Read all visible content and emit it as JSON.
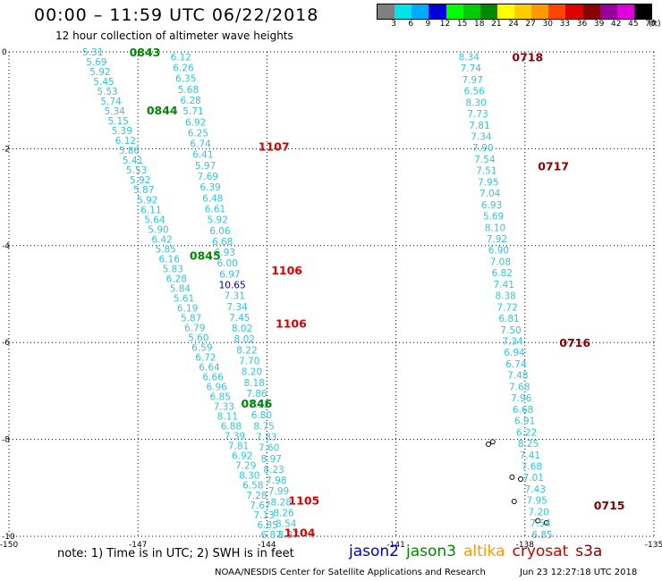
{
  "header": {
    "title": "00:00 – 11:59 UTC 06/22/2018",
    "subtitle": "12 hour collection of altimeter wave heights"
  },
  "scale": {
    "unit": "(ft)",
    "labels": [
      "3",
      "6",
      "9",
      "12",
      "15",
      "18",
      "21",
      "24",
      "27",
      "30",
      "33",
      "36",
      "39",
      "42",
      "45",
      "70"
    ],
    "colors": [
      "#808080",
      "#00e6e6",
      "#00aaff",
      "#0000dd",
      "#00ff00",
      "#00cc00",
      "#008800",
      "#ffff00",
      "#ffcc00",
      "#ff9900",
      "#ff4400",
      "#dd0000",
      "#880000",
      "#990099",
      "#dd00dd",
      "#000000"
    ]
  },
  "footer": {
    "note": "note: 1) Time is in UTC; 2) SWH is in feet",
    "credit": "NOAA/NESDIS Center for Satellite Applications and Research",
    "stamp": "Jun 23 12:27:18 UTC 2018"
  },
  "satellites": [
    {
      "name": "jason2",
      "color": "#0000cc"
    },
    {
      "name": "jason3",
      "color": "#008800"
    },
    {
      "name": "altika",
      "color": "#ff9900"
    },
    {
      "name": "cryosat",
      "color": "#cc0000"
    },
    {
      "name": "s3a",
      "color": "#8b0000"
    }
  ],
  "chart_data": {
    "type": "scatter",
    "title": "00:00 – 11:59 UTC 06/22/2018",
    "xlim": [
      -150,
      -135
    ],
    "ylim": [
      -10,
      0
    ],
    "xticks": [
      "-150",
      "-147",
      "-144",
      "-141",
      "-138",
      "-135"
    ],
    "yticks": [
      "0",
      "-2",
      "-4",
      "-6",
      "-8",
      "-10"
    ],
    "grid": true,
    "tracks": [
      {
        "satellite": "jason3",
        "color": "#33c4dd",
        "start": [
          -148.05,
          0.0
        ],
        "end": [
          -143.9,
          -9.96
        ],
        "values": [
          "5.31",
          "5.69",
          "5.92",
          "5.45",
          "5.53",
          "5.74",
          "5.34",
          "5.15",
          "5.39",
          "6.12",
          "5.86",
          "5.41",
          "5.53",
          "5.92",
          "5.87",
          "5.92",
          "6.11",
          "5.64",
          "5.90",
          "6.42",
          "5.85",
          "6.16",
          "5.83",
          "6.28",
          "5.84",
          "5.61",
          "6.19",
          "5.87",
          "6.79",
          "5.60",
          "6.59",
          "6.72",
          "6.64",
          "6.66",
          "6.96",
          "6.85",
          "7.33",
          "8.11",
          "6.88",
          "7.39",
          "7.81",
          "6.92",
          "7.29",
          "8.30",
          "6.58",
          "7.28",
          "7.67",
          "7.13",
          "6.85",
          "6.87"
        ]
      },
      {
        "satellite": "cryosat",
        "color": "#33c4dd",
        "start": [
          -146.0,
          -0.1
        ],
        "end": [
          -143.5,
          -9.96
        ],
        "values": [
          "6.12",
          "6.26",
          "6.35",
          "5.68",
          "6.28",
          "5.71",
          "6.92",
          "6.25",
          "6.74",
          "6.41",
          "5.97",
          "7.69",
          "6.39",
          "6.48",
          "6.61",
          "5.92",
          "6.06",
          "6.68",
          "6.93",
          "6.00",
          "6.97",
          "10.65",
          "7.31",
          "7.34",
          "7.45",
          "8.02",
          "8.02",
          "8.22",
          "7.70",
          "8.20",
          "8.18",
          "7.86",
          "7.92",
          "6.80",
          "8.75",
          "7.83",
          "7.60",
          "8.97",
          "8.23",
          "7.98",
          "7.99",
          "8.28",
          "8.26",
          "8.54",
          "8.37"
        ]
      },
      {
        "satellite": "s3a",
        "color": "#33c4dd",
        "start": [
          -139.3,
          -0.1
        ],
        "end": [
          -137.6,
          -9.96
        ],
        "values": [
          "8.34",
          "7.74",
          "7.97",
          "6.56",
          "8.30",
          "7.73",
          "7.81",
          "7.34",
          "7.90",
          "7.54",
          "7.51",
          "7.95",
          "7.04",
          "6.93",
          "5.69",
          "8.10",
          "7.92",
          "6.90",
          "7.08",
          "6.82",
          "7.41",
          "8.38",
          "7.72",
          "6.81",
          "7.50",
          "7.34",
          "6.94",
          "6.74",
          "7.48",
          "7.68",
          "7.96",
          "6.68",
          "6.91",
          "6.22",
          "8.25",
          "7.41",
          "7.68",
          "7.01",
          "7.43",
          "7.95",
          "7.20",
          "7.54",
          "6.85"
        ]
      }
    ],
    "time_labels": [
      {
        "text": "0843",
        "lon": -147.2,
        "lat": 0.0,
        "color": "#008800"
      },
      {
        "text": "0844",
        "lon": -146.8,
        "lat": -1.2,
        "color": "#008800"
      },
      {
        "text": "0845",
        "lon": -145.8,
        "lat": -4.2,
        "color": "#008800"
      },
      {
        "text": "0846",
        "lon": -144.6,
        "lat": -7.25,
        "color": "#008800"
      },
      {
        "text": "1107",
        "lon": -144.2,
        "lat": -1.95,
        "color": "#dd0000"
      },
      {
        "text": "1106",
        "lon": -143.9,
        "lat": -4.5,
        "color": "#dd0000"
      },
      {
        "text": "1106",
        "lon": -143.8,
        "lat": -5.6,
        "color": "#dd0000"
      },
      {
        "text": "1105",
        "lon": -143.5,
        "lat": -9.25,
        "color": "#dd0000"
      },
      {
        "text": "1104",
        "lon": -143.6,
        "lat": -9.92,
        "color": "#dd0000"
      },
      {
        "text": "0718",
        "lon": -138.3,
        "lat": -0.1,
        "color": "#8b0000"
      },
      {
        "text": "0717",
        "lon": -137.7,
        "lat": -2.35,
        "color": "#8b0000"
      },
      {
        "text": "0716",
        "lon": -137.2,
        "lat": -6.0,
        "color": "#8b0000"
      },
      {
        "text": "0715",
        "lon": -136.4,
        "lat": -9.35,
        "color": "#8b0000"
      }
    ]
  }
}
